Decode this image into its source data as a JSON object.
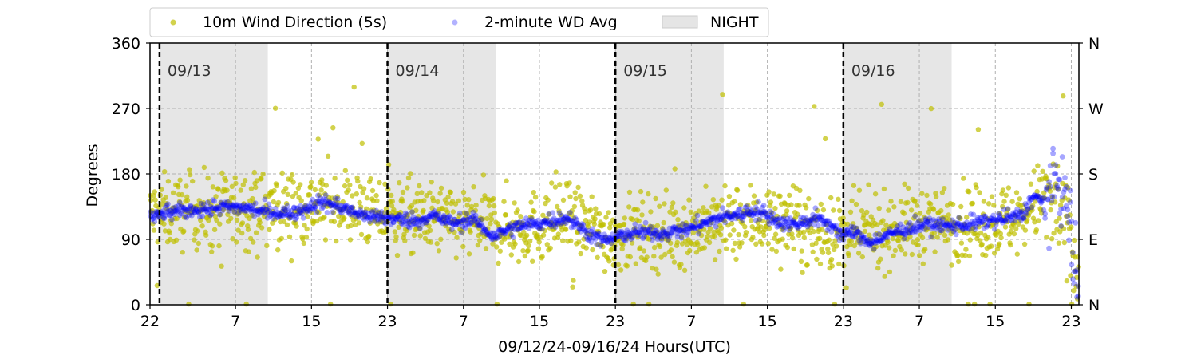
{
  "chart_data": {
    "type": "scatter",
    "xlabel": "09/12/24-09/16/24  Hours(UTC)",
    "ylabel": "Degrees",
    "ylim": [
      0,
      360
    ],
    "xlim_hours": [
      22,
      119.8
    ],
    "yticks": [
      0,
      90,
      180,
      270,
      360
    ],
    "ytick_labels": [
      "0",
      "90",
      "180",
      "270",
      "360"
    ],
    "right_ticks": [
      0,
      90,
      180,
      270,
      360
    ],
    "right_tick_labels": [
      "N",
      "E",
      "S",
      "W",
      "N"
    ],
    "xticks": [
      22,
      31,
      39,
      47,
      55,
      63,
      71,
      79,
      87,
      95,
      103,
      111,
      119
    ],
    "xtick_labels": [
      "22",
      "7",
      "15",
      "23",
      "7",
      "15",
      "23",
      "7",
      "15",
      "23",
      "7",
      "15",
      "23"
    ],
    "grid": true,
    "legend_position": "top-left, above plot",
    "legend": [
      {
        "label": "10m Wind Direction (5s)",
        "color": "#bfbf00",
        "kind": "dot"
      },
      {
        "label": "2-minute WD Avg",
        "color": "#0000ff",
        "kind": "dot"
      },
      {
        "label": "NIGHT",
        "color": "#e5e5e5",
        "kind": "patch"
      }
    ],
    "day_boundaries": [
      {
        "hour": 23,
        "label": "09/13"
      },
      {
        "hour": 47,
        "label": "09/14"
      },
      {
        "hour": 71,
        "label": "09/15"
      },
      {
        "hour": 95,
        "label": "09/16"
      }
    ],
    "night_intervals": [
      [
        23,
        34.4
      ],
      [
        47,
        58.4
      ],
      [
        71,
        82.4
      ],
      [
        95,
        106.4
      ]
    ],
    "series": [
      {
        "name": "10m Wind Direction (5s)",
        "color": "#bfbf00",
        "spread_deg": 45,
        "x": [
          22,
          26,
          30,
          34,
          38,
          42,
          46,
          50,
          54,
          58,
          62,
          66,
          70,
          74,
          78,
          82,
          86,
          90,
          94,
          98,
          102,
          106,
          110,
          114,
          116,
          118,
          119.5
        ],
        "y": [
          125,
          128,
          130,
          130,
          135,
          140,
          125,
          120,
          115,
          110,
          105,
          118,
          95,
          100,
          102,
          108,
          118,
          110,
          92,
          100,
          110,
          115,
          112,
          120,
          150,
          120,
          50
        ]
      },
      {
        "name": "2-minute WD Avg",
        "color": "#0000ff",
        "x": [
          22,
          24,
          26,
          28,
          30,
          32,
          34,
          36,
          38,
          40,
          42,
          44,
          46,
          48,
          50,
          52,
          54,
          56,
          58,
          60,
          62,
          64,
          66,
          68,
          70,
          72,
          74,
          76,
          78,
          80,
          82,
          84,
          86,
          88,
          90,
          92,
          94,
          95,
          96,
          98,
          100,
          102,
          104,
          106,
          108,
          110,
          112,
          114,
          115,
          116,
          117,
          118,
          119,
          119.6
        ],
        "y": [
          120,
          127,
          130,
          132,
          135,
          133,
          128,
          125,
          130,
          142,
          135,
          125,
          120,
          118,
          115,
          122,
          112,
          118,
          95,
          105,
          110,
          115,
          120,
          100,
          88,
          97,
          100,
          98,
          103,
          110,
          120,
          125,
          130,
          115,
          110,
          120,
          108,
          95,
          100,
          85,
          98,
          105,
          112,
          108,
          110,
          115,
          118,
          125,
          150,
          140,
          160,
          170,
          100,
          20
        ]
      }
    ]
  }
}
